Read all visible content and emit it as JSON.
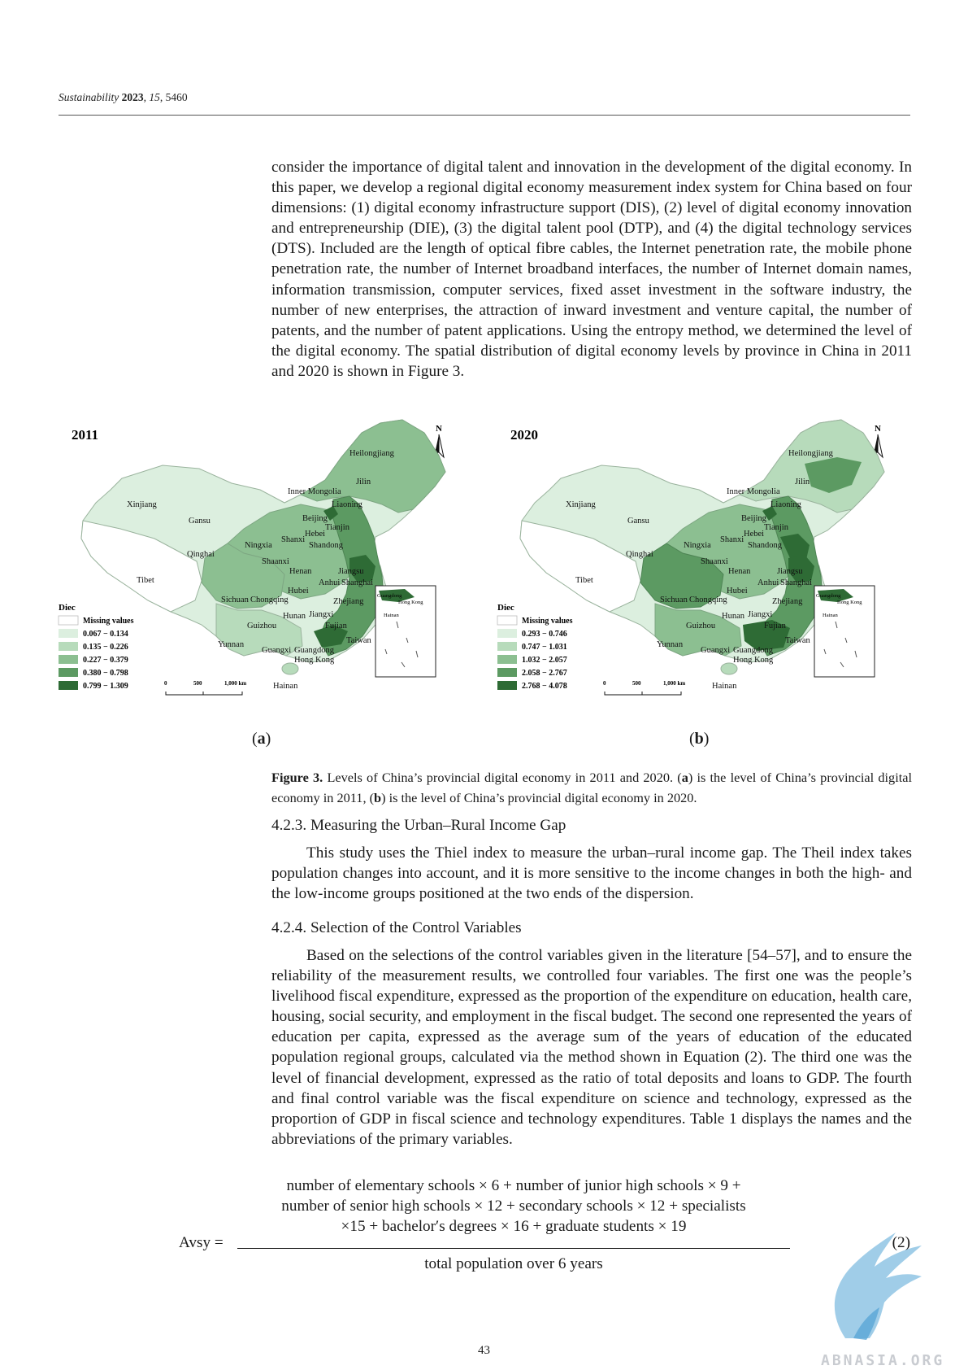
{
  "header": {
    "journal": "Sustainability",
    "year": "2023",
    "volume": "15",
    "article": "5460"
  },
  "body_top": {
    "lines": [
      "consider the importance of digital talent and innovation in the development of the digital",
      "economy. In this paper, we develop a regional digital economy measurement index system",
      "for China based on four dimensions: (1) digital economy infrastructure support (DIS),",
      "(2) level of digital economy innovation and entrepreneurship (DIE), (3) the digital talent",
      "pool (DTP), and (4) the digital technology services (DTS). Included are the length of optical",
      "fibre cables, the Internet penetration rate, the mobile phone penetration rate, the number",
      "of Internet broadband interfaces, the number of Internet domain names, information",
      "transmission, computer services, fixed asset investment in the software industry, the",
      "number of new enterprises, the attraction of inward investment and venture capital, the",
      "number of patents, and the number of patent applications. Using the entropy method, we",
      "determined the level of the digital economy. The spatial distribution of digital economy",
      "levels by province in China in 2011 and 2020 is shown in Figure 3."
    ]
  },
  "figure": {
    "maps": [
      {
        "year": "2011",
        "panel": "a",
        "legend_title": "Diec",
        "legend": [
          "Missing values",
          "0.067 − 0.134",
          "0.135 − 0.226",
          "0.227 − 0.379",
          "0.380 − 0.798",
          "0.799 − 1.309"
        ],
        "colors": [
          "#ffffff",
          "#dcefdf",
          "#b7dbbb",
          "#8cbf91",
          "#5c9a62",
          "#2e6b35"
        ]
      },
      {
        "year": "2020",
        "panel": "b",
        "legend_title": "Diec",
        "legend": [
          "Missing values",
          "0.293 − 0.746",
          "0.747 − 1.031",
          "1.032 − 2.057",
          "2.058 − 2.767",
          "2.768 − 4.078"
        ],
        "colors": [
          "#ffffff",
          "#dcefdf",
          "#b7dbbb",
          "#8cbf91",
          "#5c9a62",
          "#2e6b35"
        ]
      }
    ],
    "north": "N",
    "scale": [
      "0",
      "500",
      "1,000 km"
    ],
    "provinces": [
      "Heilongjiang",
      "Jilin",
      "Inner Mongolia",
      "Liaoning",
      "Xinjiang",
      "Gansu",
      "Beijing",
      "Tianjin",
      "Hebei",
      "Ningxia",
      "Shanxi",
      "Shandong",
      "Qinghai",
      "Shaanxi",
      "Henan",
      "Jiangsu",
      "Tibet",
      "Anhui",
      "Shanghai",
      "Sichuan",
      "Chongqing",
      "Hubei",
      "Zhejiang",
      "Hunan",
      "Jiangxi",
      "Guizhou",
      "Fujian",
      "Taiwan",
      "Yunnan",
      "Guangxi",
      "Guangdong",
      "Hong Kong",
      "Hainan"
    ],
    "labels": {
      "a": "a",
      "b": "b"
    },
    "caption": {
      "lead": "Figure 3.",
      "text": " Levels of China’s provincial digital economy in 2011 and 2020. (",
      "a": "a",
      "text2": ") is the level of China’s provincial digital economy in 2011, (",
      "b": "b",
      "text3": ") is the level of China’s provincial digital economy in 2020."
    }
  },
  "section_423": {
    "heading": "4.2.3. Measuring the Urban–Rural Income Gap",
    "lines": [
      "This study uses the Thiel index to measure the urban–rural income gap. The Theil",
      "index takes population changes into account, and it is more sensitive to the income changes",
      "in both the high- and the low-income groups positioned at the two ends of the dispersion."
    ]
  },
  "section_424": {
    "heading": "4.2.4. Selection of the Control Variables",
    "lines": [
      "Based on the selections of the control variables given in the literature [54–57], and",
      "to ensure the reliability of the measurement results, we controlled four variables. The",
      "first one was the people’s livelihood fiscal expenditure, expressed as the proportion of the",
      "expenditure on education, health care, housing, social security, and employment in the",
      "fiscal budget. The second one represented the years of education per capita, expressed",
      "as the average sum of the years of education of the educated population regional groups,",
      "calculated via the method shown in Equation (2). The third one was the level of financial",
      "development, expressed as the ratio of total deposits and loans to GDP. The fourth and",
      "final control variable was the fiscal expenditure on science and technology, expressed as",
      "the proportion of GDP in fiscal science and technology expenditures. Table 1 displays the",
      "names and the abbreviations of the primary variables."
    ]
  },
  "equation": {
    "lhs": "Avsy =",
    "numerator": [
      "number of elementary schools × 6 + number of junior high schools × 9 +",
      "number of senior high schools × 12 + secondary schools × 12 + specialists",
      "×15 + bachelor′s degrees × 16 + graduate students × 19"
    ],
    "denominator": "total population over 6 years",
    "number": "(2)"
  },
  "page_number": "43",
  "watermark": "ABNASIA.ORG"
}
